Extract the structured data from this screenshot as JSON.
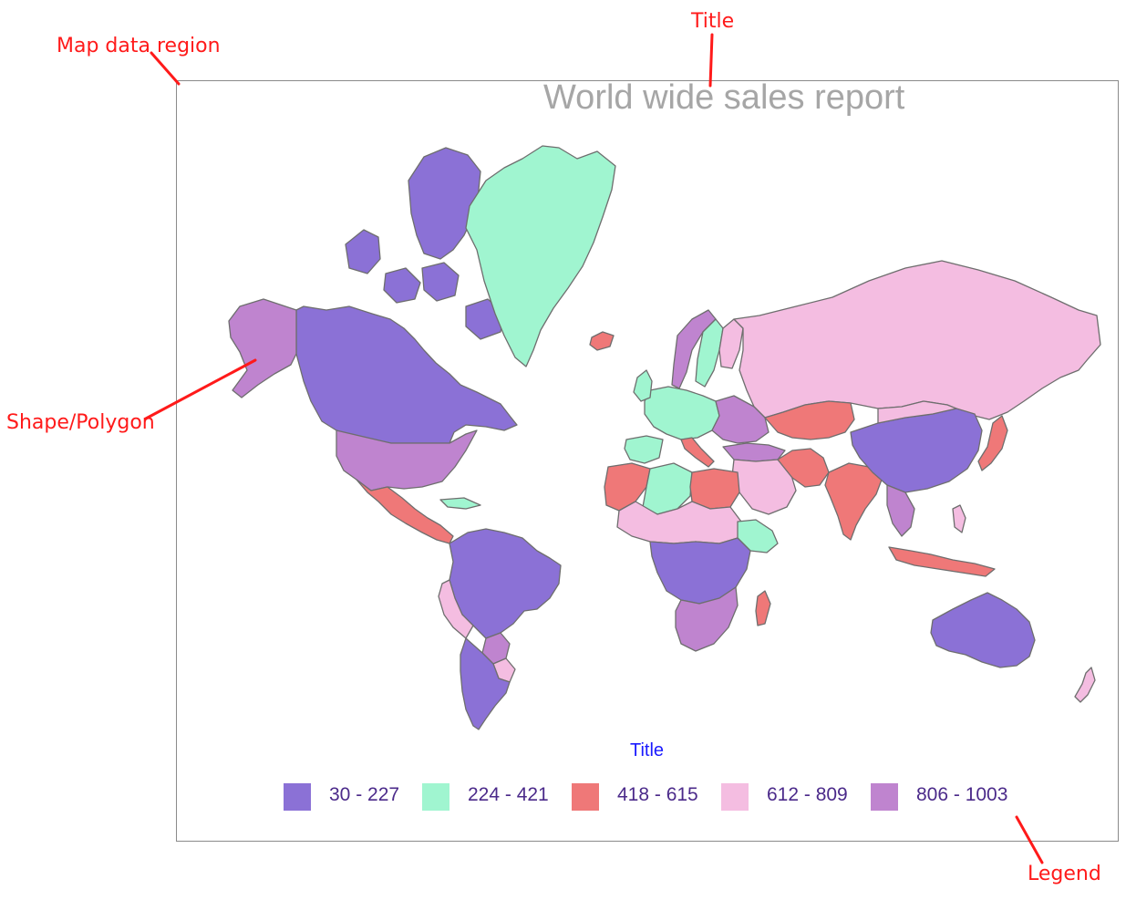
{
  "map": {
    "title": "World wide sales report",
    "border_color": "#8a8a8a",
    "shape_stroke": "#6e6e6e"
  },
  "legend": {
    "title": "Title",
    "items": [
      {
        "label": "30 - 227",
        "color": "#8b71d6"
      },
      {
        "label": "224 - 421",
        "color": "#a0f5d0"
      },
      {
        "label": "418 - 615",
        "color": "#ef7878"
      },
      {
        "label": "612 - 809",
        "color": "#f4bde1"
      },
      {
        "label": "806 - 1003",
        "color": "#bf84cf"
      }
    ]
  },
  "annotations": {
    "map_data_region": "Map data region",
    "title": "Title",
    "shape_polygon": "Shape/Polygon",
    "legend": "Legend",
    "color": "#ff1a1a"
  }
}
